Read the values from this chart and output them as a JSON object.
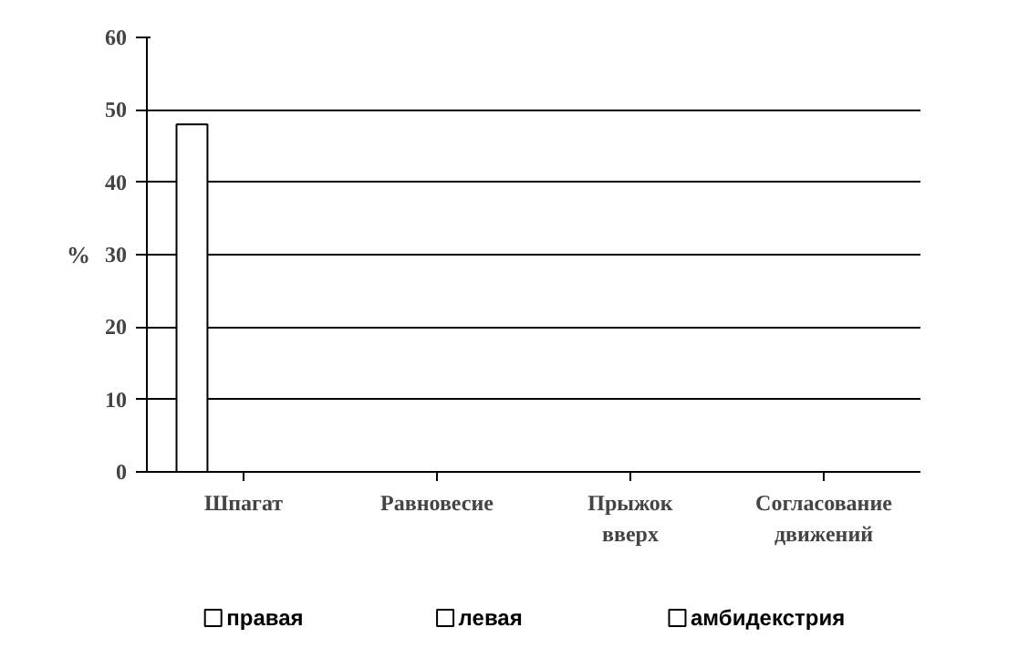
{
  "chart_data": {
    "type": "bar",
    "ylabel": "%",
    "categories": [
      "Шпагат",
      "Равновесие",
      "Прыжок\nвверх",
      "Согласование\nдвижений"
    ],
    "series": [
      {
        "name": "правая",
        "color": "#ffffff",
        "values": [
          48,
          null,
          null,
          null
        ]
      },
      {
        "name": "левая",
        "color": "#ffffff",
        "values": [
          null,
          null,
          null,
          null
        ]
      },
      {
        "name": "амбидекстрия",
        "color": "#ffffff",
        "values": [
          null,
          null,
          null,
          null
        ]
      }
    ],
    "ylim": [
      0,
      60
    ],
    "yticks": [
      0,
      10,
      20,
      30,
      40,
      50,
      60
    ],
    "grid": "y",
    "legend": "bottom"
  }
}
